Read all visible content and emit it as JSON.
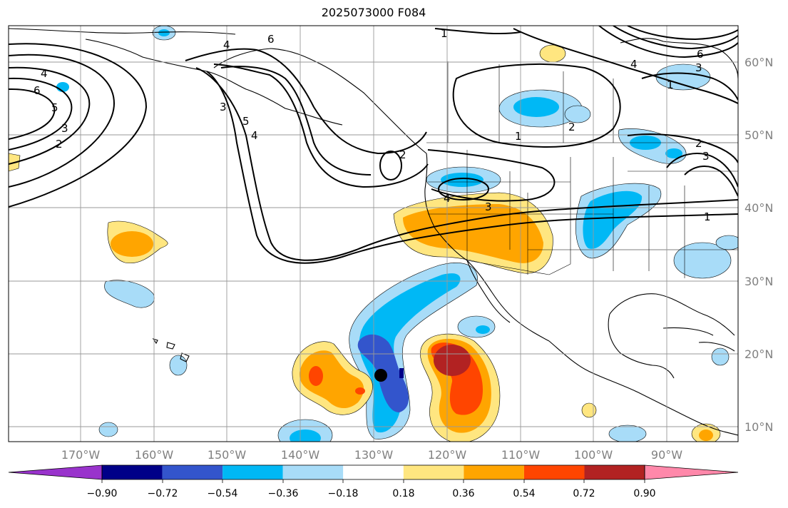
{
  "title": "2025073000 F084",
  "longitude_labels": [
    "170°W",
    "160°W",
    "150°W",
    "140°W",
    "130°W",
    "120°W",
    "110°W",
    "100°W",
    "90°W"
  ],
  "latitude_labels": [
    "60°N",
    "50°N",
    "40°N",
    "30°N",
    "20°N",
    "10°N"
  ],
  "colorbar": {
    "ticks": [
      "−0.90",
      "−0.72",
      "−0.54",
      "−0.36",
      "−0.18",
      "0.18",
      "0.36",
      "0.54",
      "0.72",
      "0.90"
    ],
    "colors": [
      "#9933cc",
      "#000088",
      "#3355cc",
      "#00b8f5",
      "#a8dcf8",
      "#ffffff",
      "#ffe680",
      "#ffa500",
      "#ff4500",
      "#b22222",
      "#ff88aa"
    ]
  },
  "contour_labels": [
    "1",
    "2",
    "3",
    "4",
    "5",
    "6"
  ],
  "colors": {
    "land_outline": "#000000",
    "grid": "#999999",
    "contour": "#000000",
    "marker": "#000000"
  }
}
